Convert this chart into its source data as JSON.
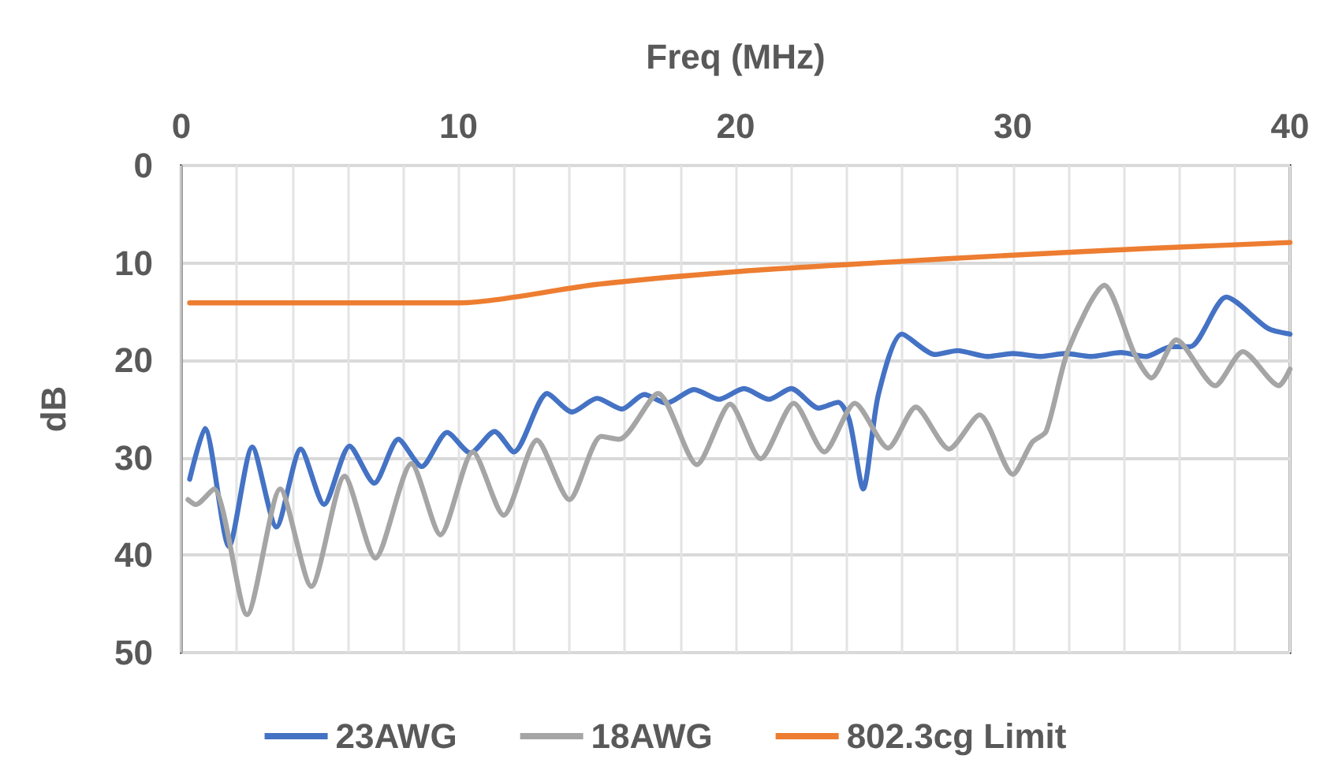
{
  "chart_data": {
    "type": "line",
    "xlabel": "Freq (MHz)",
    "ylabel": "dB",
    "xlim": [
      0,
      40
    ],
    "xticks": [
      0,
      {
        "value": 2,
        "label": null
      },
      {
        "value": 4,
        "label": null
      },
      {
        "value": 6,
        "label": null
      },
      {
        "value": 8,
        "label": null
      },
      10,
      {
        "value": 12,
        "label": null
      },
      {
        "value": 14,
        "label": null
      },
      {
        "value": 16,
        "label": null
      },
      {
        "value": 18,
        "label": null
      },
      20,
      {
        "value": 22,
        "label": null
      },
      {
        "value": 24,
        "label": null
      },
      {
        "value": 26,
        "label": null
      },
      {
        "value": 28,
        "label": null
      },
      30,
      {
        "value": 32,
        "label": null
      },
      {
        "value": 34,
        "label": null
      },
      {
        "value": 36,
        "label": null
      },
      {
        "value": 38,
        "label": null
      },
      40
    ],
    "ylim": [
      50,
      0
    ],
    "yticks": [
      0,
      10,
      20,
      30,
      40,
      50
    ],
    "grid": true,
    "legend": "bottom",
    "marker": "none",
    "line_style": "solid",
    "series": [
      {
        "name": "23AWG",
        "color": "#4472c4",
        "x": [
          0.3,
          0.85,
          1.72,
          2.56,
          3.43,
          4.31,
          5.15,
          6.07,
          6.96,
          7.83,
          8.67,
          9.59,
          10.43,
          11.3,
          12.0,
          13.2,
          14.1,
          15.0,
          15.9,
          16.7,
          17.5,
          18.5,
          19.4,
          20.3,
          21.2,
          22.0,
          23.0,
          23.7,
          24.1,
          24.6,
          25.15,
          26.0,
          27.2,
          28.0,
          29.1,
          30.0,
          31.0,
          31.9,
          32.8,
          33.9,
          34.8,
          35.7,
          36.4,
          37.7,
          39.2,
          40
        ],
        "values": [
          32.2,
          27.0,
          39.1,
          28.9,
          37.1,
          29.1,
          34.8,
          28.8,
          32.6,
          28.1,
          30.9,
          27.4,
          29.5,
          27.3,
          29.4,
          23.4,
          25.3,
          23.9,
          25.0,
          23.5,
          24.4,
          23.0,
          24.0,
          22.9,
          24.0,
          22.9,
          24.9,
          24.3,
          26.1,
          33.2,
          23.5,
          17.3,
          19.4,
          19.0,
          19.6,
          19.3,
          19.6,
          19.3,
          19.6,
          19.2,
          19.6,
          18.6,
          18.6,
          13.5,
          16.7,
          17.3
        ]
      },
      {
        "name": "18AWG",
        "color": "#a5a5a5",
        "x": [
          0.24,
          0.52,
          1.17,
          2.37,
          3.57,
          4.69,
          5.89,
          7.0,
          8.3,
          9.35,
          10.52,
          11.63,
          12.83,
          14.0,
          15.15,
          15.8,
          17.2,
          18.6,
          19.8,
          20.9,
          22.1,
          23.2,
          24.3,
          25.5,
          26.5,
          27.7,
          28.8,
          30.0,
          30.7,
          31.2,
          32.0,
          33.3,
          34.4,
          35.0,
          35.9,
          37.3,
          38.3,
          39.6,
          40
        ],
        "values": [
          34.3,
          34.8,
          33.2,
          46.1,
          33.2,
          43.2,
          31.9,
          40.3,
          30.6,
          37.9,
          29.4,
          35.9,
          28.2,
          34.3,
          27.8,
          28.1,
          23.4,
          30.7,
          24.5,
          30.1,
          24.4,
          29.4,
          24.4,
          29.0,
          24.8,
          29.1,
          25.6,
          31.7,
          28.4,
          27.3,
          18.9,
          12.3,
          19.4,
          21.8,
          17.9,
          22.6,
          19.1,
          22.6,
          20.9
        ]
      },
      {
        "name": "802.3cg Limit",
        "color": "#ed7d31",
        "x": [
          0.3,
          10,
          15,
          20,
          25,
          30,
          35,
          40
        ],
        "values": [
          14.1,
          14.1,
          12.2,
          10.9,
          10.0,
          9.2,
          8.5,
          7.9
        ]
      }
    ]
  }
}
